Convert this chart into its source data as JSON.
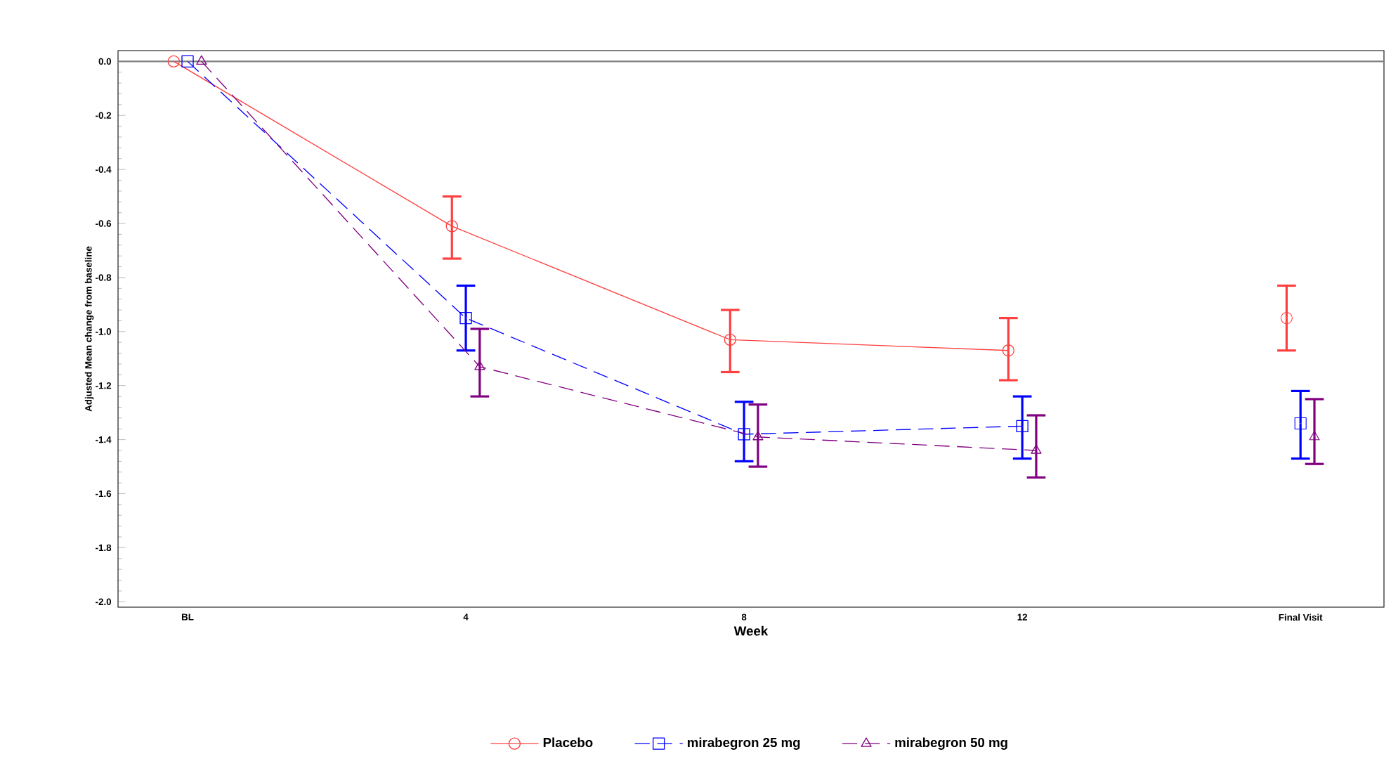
{
  "chart_data": {
    "type": "line",
    "xlabel": "Week",
    "ylabel": "Adjusted Mean change from baseline",
    "categories": [
      "BL",
      "4",
      "8",
      "12",
      "Final Visit"
    ],
    "ylim": [
      -2.02,
      0.04
    ],
    "yticks": [
      {
        "value": 0,
        "label": "0.0"
      },
      -0.2,
      -0.4,
      -0.6,
      -0.8,
      {
        "value": -1.0,
        "label": "-1.0"
      },
      -1.2,
      -1.4,
      -1.6,
      -1.8,
      {
        "value": -2.0,
        "label": "-2.0"
      }
    ],
    "legend": "bottom",
    "ref_lines": [
      {
        "axis": "y",
        "value": 0,
        "color": "#808080"
      }
    ],
    "series": [
      {
        "name": "Placebo",
        "color": "#ff4040",
        "marker": "circle",
        "line_style": "solid",
        "values": [
          0,
          -0.61,
          -1.03,
          -1.07,
          null
        ],
        "errors": [
          null,
          [
            -0.73,
            -0.5
          ],
          [
            -1.15,
            -0.92
          ],
          [
            -1.18,
            -0.95
          ],
          null
        ]
      },
      {
        "type": "scatter",
        "color": "#ff4040",
        "marker": "circle",
        "values": [
          null,
          null,
          null,
          null,
          -0.95
        ],
        "errors": [
          null,
          null,
          null,
          null,
          [
            -1.07,
            -0.83
          ]
        ]
      },
      {
        "name": "mirabegron 25 mg",
        "color": "#0000ff",
        "marker": "square",
        "line_style": "dashed",
        "values": [
          0,
          -0.95,
          -1.38,
          -1.35,
          null
        ],
        "errors": [
          null,
          [
            -1.07,
            -0.83
          ],
          [
            -1.48,
            -1.26
          ],
          [
            -1.47,
            -1.24
          ],
          null
        ]
      },
      {
        "type": "scatter",
        "color": "#0000ff",
        "marker": "square",
        "values": [
          null,
          null,
          null,
          null,
          -1.34
        ],
        "errors": [
          null,
          null,
          null,
          null,
          [
            -1.47,
            -1.22
          ]
        ]
      },
      {
        "name": "mirabegron 50 mg",
        "color": "#800080",
        "marker": "triangle",
        "line_style": "dashed",
        "values": [
          0,
          -1.13,
          -1.39,
          -1.44,
          null
        ],
        "errors": [
          null,
          [
            -1.24,
            -0.99
          ],
          [
            -1.5,
            -1.27
          ],
          [
            -1.54,
            -1.31
          ],
          null
        ]
      },
      {
        "type": "scatter",
        "color": "#800080",
        "marker": "triangle",
        "values": [
          null,
          null,
          null,
          null,
          -1.39
        ],
        "errors": [
          null,
          null,
          null,
          null,
          [
            -1.49,
            -1.25
          ]
        ]
      }
    ]
  }
}
